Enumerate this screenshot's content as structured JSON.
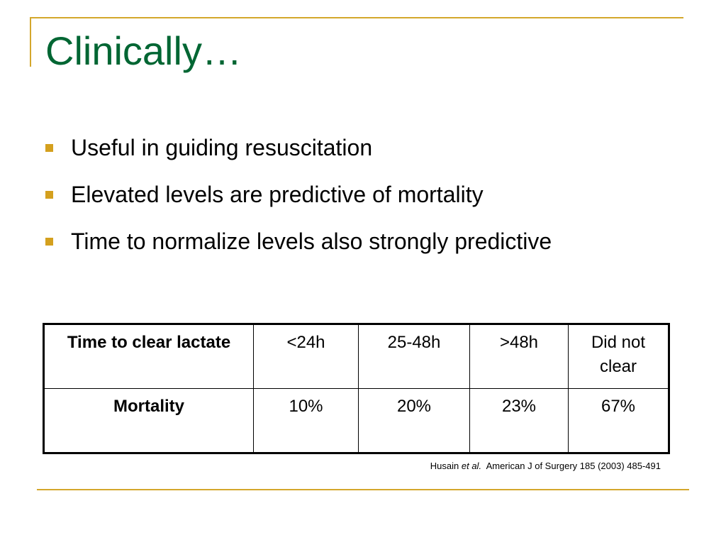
{
  "slide": {
    "title": "Clinically…",
    "bullets": [
      "Useful in guiding resuscitation",
      "Elevated levels are predictive of mortality",
      "Time to normalize levels also strongly predictive"
    ],
    "table": {
      "rows": [
        {
          "header": "Time to clear lactate",
          "cells": [
            "<24h",
            "25-48h",
            ">48h",
            "Did not clear"
          ]
        },
        {
          "header": "Mortality",
          "cells": [
            "10%",
            "20%",
            "23%",
            "67%"
          ]
        }
      ]
    },
    "citation": {
      "author": "Husain",
      "etal": "et al.",
      "source": "American J of Surgery 185 (2003) 485-491"
    }
  },
  "colors": {
    "title": "#006633",
    "accent_rule": "#d4a72c",
    "bullet_marker": "#d4a01e"
  }
}
